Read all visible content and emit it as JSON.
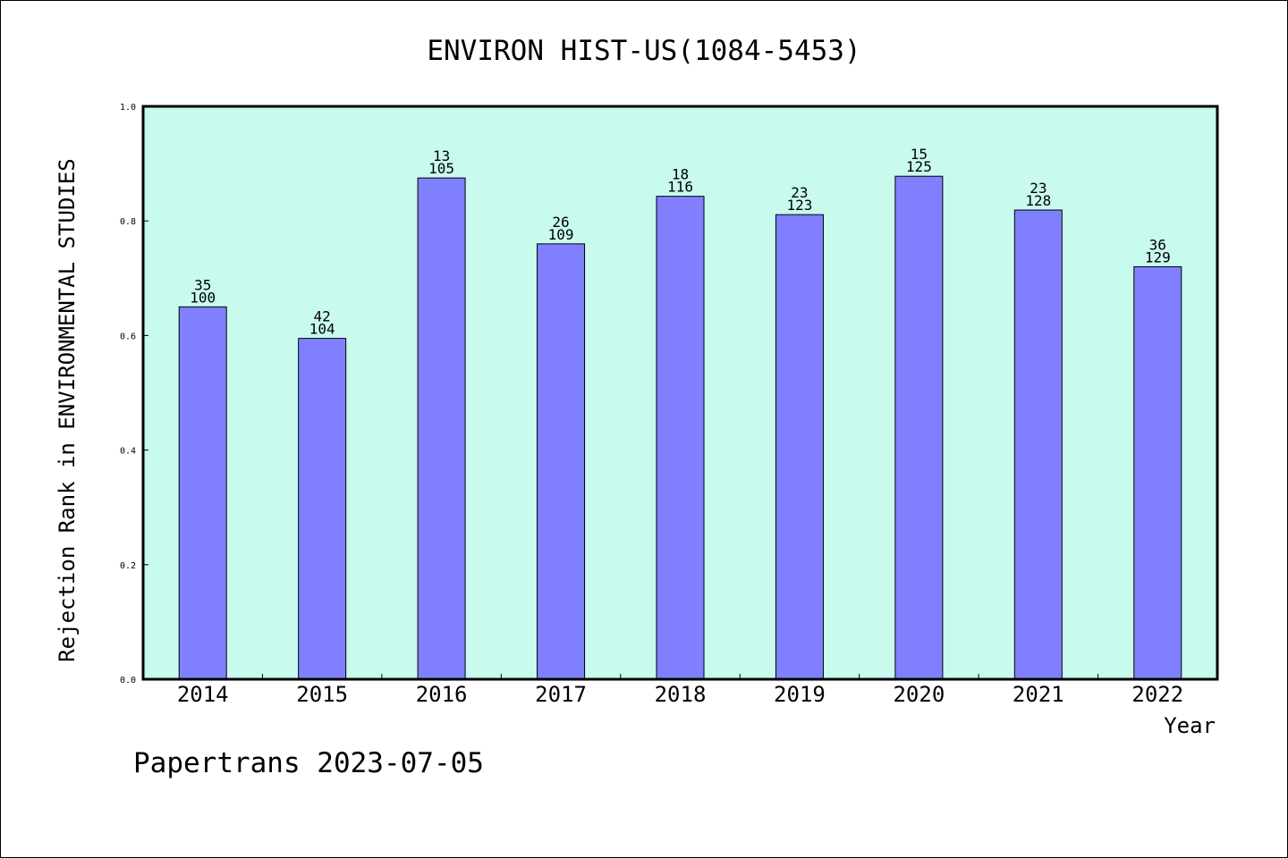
{
  "footer": "Papertrans 2023-07-05",
  "colors": {
    "plot_background": "#c8faee",
    "bar_fill": "#8080ff",
    "bar_stroke": "#000000",
    "axis": "#000000"
  },
  "chart_data": {
    "type": "bar",
    "title": "ENVIRON HIST-US(1084-5453)",
    "xlabel": "Year",
    "ylabel": "Rejection Rank in ENVIRONMENTAL STUDIES",
    "ylim": [
      0,
      1.0
    ],
    "yticks": [
      "0.0",
      "0.2",
      "0.4",
      "0.6",
      "0.8",
      "1.0"
    ],
    "grid": false,
    "categories": [
      "2014",
      "2015",
      "2016",
      "2017",
      "2018",
      "2019",
      "2020",
      "2021",
      "2022"
    ],
    "values": [
      0.65,
      0.595,
      0.875,
      0.76,
      0.843,
      0.811,
      0.878,
      0.819,
      0.72
    ],
    "rank_labels": [
      "35",
      "42",
      "13",
      "26",
      "18",
      "23",
      "15",
      "23",
      "36"
    ],
    "total_labels": [
      "100",
      "104",
      "105",
      "109",
      "116",
      "123",
      "125",
      "128",
      "129"
    ]
  }
}
